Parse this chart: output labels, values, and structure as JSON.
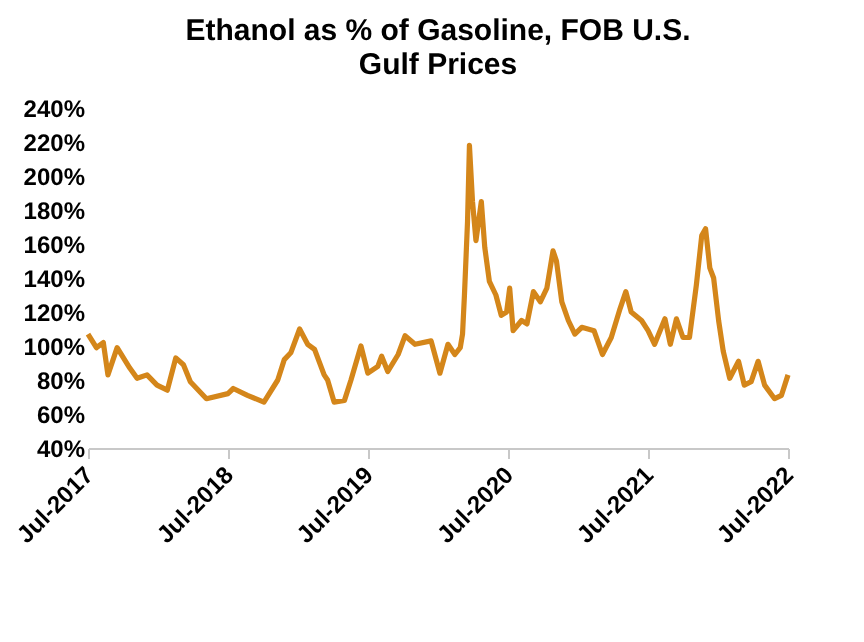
{
  "chart_data": {
    "type": "line",
    "title": "Ethanol as % of Gasoline, FOB U.S. Gulf Prices",
    "x": [
      "2017-07-01",
      "2017-07-23",
      "2017-08-10",
      "2017-08-22",
      "2017-09-15",
      "2017-10-18",
      "2017-11-06",
      "2017-12-02",
      "2017-12-28",
      "2018-01-24",
      "2018-02-15",
      "2018-03-07",
      "2018-03-25",
      "2018-05-06",
      "2018-07-01",
      "2018-07-15",
      "2018-08-21",
      "2018-10-03",
      "2018-11-08",
      "2018-11-25",
      "2018-12-12",
      "2019-01-04",
      "2019-01-25",
      "2019-02-12",
      "2019-03-09",
      "2019-03-18",
      "2019-04-04",
      "2019-05-01",
      "2019-05-18",
      "2019-06-13",
      "2019-07-01",
      "2019-07-27",
      "2019-08-06",
      "2019-08-22",
      "2019-09-18",
      "2019-10-06",
      "2019-11-01",
      "2019-12-13",
      "2020-01-05",
      "2020-01-26",
      "2020-02-13",
      "2020-02-27",
      "2020-03-04",
      "2020-03-09",
      "2020-03-17",
      "2020-03-22",
      "2020-03-30",
      "2020-04-08",
      "2020-04-22",
      "2020-05-01",
      "2020-05-13",
      "2020-05-30",
      "2020-06-13",
      "2020-06-27",
      "2020-07-05",
      "2020-07-14",
      "2020-08-05",
      "2020-08-19",
      "2020-09-05",
      "2020-09-23",
      "2020-10-10",
      "2020-10-26",
      "2020-11-04",
      "2020-11-18",
      "2020-12-05",
      "2020-12-22",
      "2021-01-09",
      "2021-02-10",
      "2021-03-04",
      "2021-03-27",
      "2021-04-19",
      "2021-05-04",
      "2021-05-18",
      "2021-06-14",
      "2021-07-01",
      "2021-07-18",
      "2021-08-14",
      "2021-08-28",
      "2021-09-13",
      "2021-09-30",
      "2021-10-17",
      "2021-11-04",
      "2021-11-18",
      "2021-11-28",
      "2021-12-09",
      "2021-12-19",
      "2022-01-01",
      "2022-01-13",
      "2022-01-30",
      "2022-02-22",
      "2022-03-09",
      "2022-03-27",
      "2022-04-14",
      "2022-05-01",
      "2022-05-27",
      "2022-06-14",
      "2022-07-01"
    ],
    "series": [
      {
        "color": "#d4861a",
        "values": [
          107,
          99,
          102,
          83,
          99,
          87,
          81,
          83,
          77,
          74,
          93,
          89,
          79,
          69,
          72,
          75,
          71,
          67,
          80,
          92,
          96,
          110,
          101,
          98,
          83,
          80,
          67,
          68,
          80,
          100,
          84,
          88,
          94,
          85,
          95,
          106,
          101,
          103,
          84,
          101,
          95,
          99,
          107,
          130,
          173,
          218,
          185,
          162,
          185,
          158,
          138,
          130,
          118,
          120,
          134,
          109,
          115,
          113,
          132,
          126,
          134,
          156,
          150,
          126,
          115,
          107,
          111,
          109,
          95,
          105,
          122,
          132,
          120,
          115,
          109,
          101,
          116,
          101,
          116,
          105,
          105,
          136,
          165,
          169,
          146,
          140,
          115,
          97,
          81,
          91,
          77,
          79,
          91,
          77,
          69,
          71,
          83
        ]
      }
    ],
    "xlim": [
      "2017-07-01",
      "2022-07-01"
    ],
    "xticks": [
      {
        "value": "2017-07-01",
        "label": "Jul-2017"
      },
      {
        "value": "2018-07-01",
        "label": "Jul-2018"
      },
      {
        "value": "2019-07-01",
        "label": "Jul-2019"
      },
      {
        "value": "2020-07-01",
        "label": "Jul-2020"
      },
      {
        "value": "2021-07-01",
        "label": "Jul-2021"
      },
      {
        "value": "2022-07-01",
        "label": "Jul-2022"
      }
    ],
    "ylim": [
      40,
      240
    ],
    "yticks": [
      {
        "value": 40,
        "label": "40%"
      },
      {
        "value": 60,
        "label": "60%"
      },
      {
        "value": 80,
        "label": "80%"
      },
      {
        "value": 100,
        "label": "100%"
      },
      {
        "value": 120,
        "label": "120%"
      },
      {
        "value": 140,
        "label": "140%"
      },
      {
        "value": 160,
        "label": "160%"
      },
      {
        "value": 180,
        "label": "180%"
      },
      {
        "value": 200,
        "label": "200%"
      },
      {
        "value": 220,
        "label": "220%"
      },
      {
        "value": 240,
        "label": "240%"
      }
    ],
    "grid": false,
    "marker": "none",
    "line_style": "solid"
  }
}
